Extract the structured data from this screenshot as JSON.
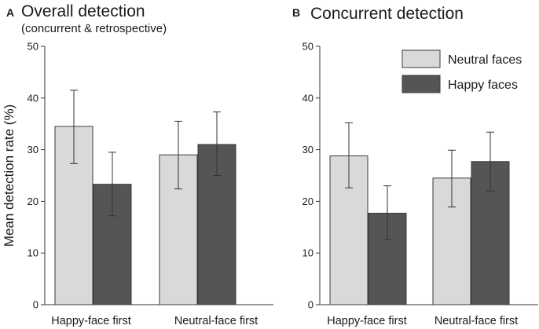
{
  "colors": {
    "neutral": "#d9d9d9",
    "happy": "#555555",
    "bar_stroke": "#3a3a3a",
    "axis": "#333333",
    "error": "#333333"
  },
  "chart_data": [
    {
      "type": "bar",
      "panel_letter": "A",
      "title": "Overall detection",
      "subtitle": "(concurrent & retrospective)",
      "ylabel": "Mean detection rate (%)",
      "xlabel": "",
      "ylim": [
        0,
        50
      ],
      "yticks": [
        0,
        10,
        20,
        30,
        40,
        50
      ],
      "categories": [
        "Happy-face first",
        "Neutral-face first"
      ],
      "series": [
        {
          "name": "Neutral faces",
          "values": [
            34.5,
            29.0
          ],
          "error_low": [
            27.3,
            22.4
          ],
          "error_high": [
            41.5,
            35.5
          ]
        },
        {
          "name": "Happy faces",
          "values": [
            23.3,
            31.0
          ],
          "error_low": [
            17.2,
            25.0
          ],
          "error_high": [
            29.5,
            37.3
          ]
        }
      ],
      "legend": false
    },
    {
      "type": "bar",
      "panel_letter": "B",
      "title": "Concurrent detection",
      "subtitle": "",
      "ylabel": "",
      "xlabel": "",
      "ylim": [
        0,
        50
      ],
      "yticks": [
        0,
        10,
        20,
        30,
        40,
        50
      ],
      "categories": [
        "Happy-face first",
        "Neutral-face first"
      ],
      "series": [
        {
          "name": "Neutral faces",
          "values": [
            28.8,
            24.5
          ],
          "error_low": [
            22.6,
            18.9
          ],
          "error_high": [
            35.2,
            29.9
          ]
        },
        {
          "name": "Happy faces",
          "values": [
            17.7,
            27.7
          ],
          "error_low": [
            12.6,
            22.0
          ],
          "error_high": [
            23.0,
            33.4
          ]
        }
      ],
      "legend": true,
      "legend_position": "top-right"
    }
  ]
}
